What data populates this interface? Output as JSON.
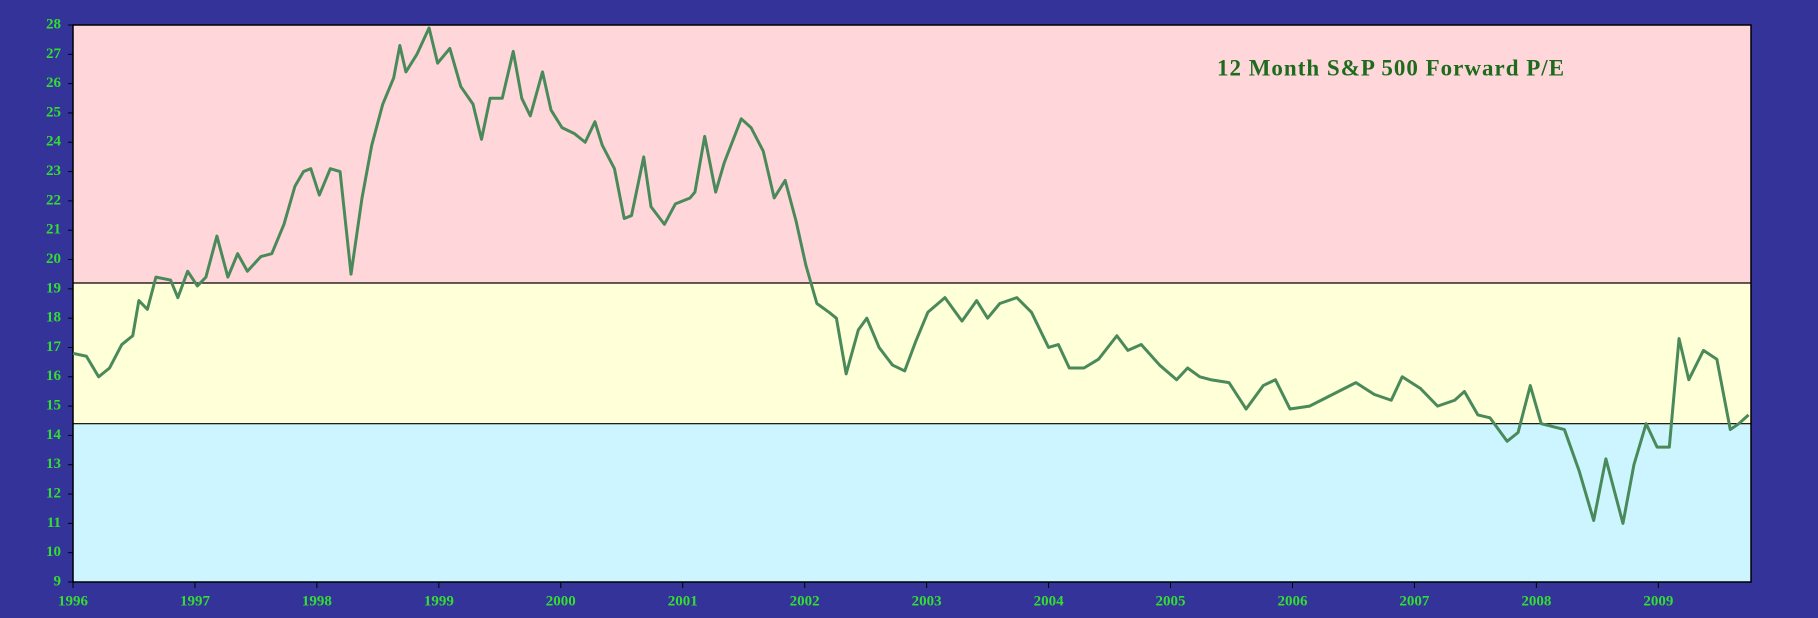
{
  "chart_data": {
    "type": "line",
    "title": "12 Month S&P 500 Forward P/E",
    "x": [
      1996.0,
      1996.11,
      1996.21,
      1996.3,
      1996.4,
      1996.49,
      1996.54,
      1996.61,
      1996.68,
      1996.8,
      1996.86,
      1996.94,
      1997.02,
      1997.09,
      1997.18,
      1997.27,
      1997.35,
      1997.43,
      1997.54,
      1997.63,
      1997.73,
      1997.82,
      1997.89,
      1997.95,
      1998.02,
      1998.11,
      1998.19,
      1998.28,
      1998.37,
      1998.45,
      1998.54,
      1998.63,
      1998.68,
      1998.73,
      1998.82,
      1998.92,
      1998.99,
      1999.09,
      1999.18,
      1999.28,
      1999.35,
      1999.42,
      1999.52,
      1999.61,
      1999.68,
      1999.75,
      1999.85,
      1999.92,
      2000.01,
      2000.11,
      2000.2,
      2000.28,
      2000.34,
      2000.44,
      2000.52,
      2000.58,
      2000.68,
      2000.74,
      2000.85,
      2000.94,
      2001.06,
      2001.1,
      2001.18,
      2001.27,
      2001.34,
      2001.48,
      2001.56,
      2001.66,
      2001.75,
      2001.84,
      2001.93,
      2002.01,
      2002.1,
      2002.2,
      2002.26,
      2002.34,
      2002.44,
      2002.51,
      2002.61,
      2002.72,
      2002.82,
      2002.91,
      2003.01,
      2003.15,
      2003.29,
      2003.41,
      2003.5,
      2003.6,
      2003.74,
      2003.86,
      2004.0,
      2004.08,
      2004.17,
      2004.29,
      2004.41,
      2004.56,
      2004.65,
      2004.76,
      2004.91,
      2005.05,
      2005.14,
      2005.24,
      2005.33,
      2005.48,
      2005.62,
      2005.76,
      2005.86,
      2005.98,
      2006.14,
      2006.33,
      2006.52,
      2006.67,
      2006.81,
      2006.9,
      2007.05,
      2007.19,
      2007.33,
      2007.41,
      2007.52,
      2007.62,
      2007.76,
      2007.85,
      2007.95,
      2008.04,
      2008.23,
      2008.35,
      2008.47,
      2008.57,
      2008.71,
      2008.8,
      2008.9,
      2008.99,
      2009.09,
      2009.17,
      2009.25,
      2009.37,
      2009.48,
      2009.59,
      2009.66,
      2009.74
    ],
    "values": [
      16.8,
      16.7,
      16.0,
      16.3,
      17.1,
      17.4,
      18.6,
      18.3,
      19.4,
      19.3,
      18.7,
      19.6,
      19.1,
      19.4,
      20.8,
      19.4,
      20.2,
      19.6,
      20.1,
      20.2,
      21.2,
      22.5,
      23.0,
      23.1,
      22.2,
      23.1,
      23.0,
      19.5,
      22.1,
      23.9,
      25.3,
      26.2,
      27.3,
      26.4,
      27.0,
      27.9,
      26.7,
      27.2,
      25.9,
      25.3,
      24.1,
      25.5,
      25.5,
      27.1,
      25.5,
      24.9,
      26.4,
      25.1,
      24.5,
      24.3,
      24.0,
      24.7,
      23.9,
      23.1,
      21.4,
      21.5,
      23.5,
      21.8,
      21.2,
      21.9,
      22.1,
      22.3,
      24.2,
      22.3,
      23.3,
      24.8,
      24.5,
      23.7,
      22.1,
      22.7,
      21.3,
      19.8,
      18.5,
      18.2,
      18.0,
      16.1,
      17.6,
      18.0,
      17.0,
      16.4,
      16.2,
      17.2,
      18.2,
      18.7,
      17.9,
      18.6,
      18.0,
      18.5,
      18.7,
      18.2,
      17.0,
      17.1,
      16.3,
      16.3,
      16.6,
      17.4,
      16.9,
      17.1,
      16.4,
      15.9,
      16.3,
      16.0,
      15.9,
      15.8,
      14.9,
      15.7,
      15.9,
      14.9,
      15.0,
      15.4,
      15.8,
      15.4,
      15.2,
      16.0,
      15.6,
      15.0,
      15.2,
      15.5,
      14.7,
      14.6,
      13.8,
      14.1,
      15.7,
      14.4,
      14.2,
      12.8,
      11.1,
      13.2,
      11.0,
      13.0,
      14.4,
      13.6,
      13.6,
      17.3,
      15.9,
      16.9,
      16.6,
      14.2,
      14.4,
      14.7
    ],
    "color": "#4a8a5a",
    "xlim": [
      1996,
      2009.76
    ],
    "xticks": [
      1996,
      1997,
      1998,
      1999,
      2000,
      2001,
      2002,
      2003,
      2004,
      2005,
      2006,
      2007,
      2008,
      2009
    ],
    "ylim": [
      9,
      28
    ],
    "yticks": [
      9,
      10,
      11,
      12,
      13,
      14,
      15,
      16,
      17,
      18,
      19,
      20,
      21,
      22,
      23,
      24,
      25,
      26,
      27,
      28
    ],
    "bands": [
      {
        "from": 19.2,
        "to": 28,
        "color": "#ffd7da"
      },
      {
        "from": 14.4,
        "to": 19.2,
        "color": "#ffffd8"
      },
      {
        "from": 9,
        "to": 14.4,
        "color": "#ccf5ff"
      }
    ]
  }
}
